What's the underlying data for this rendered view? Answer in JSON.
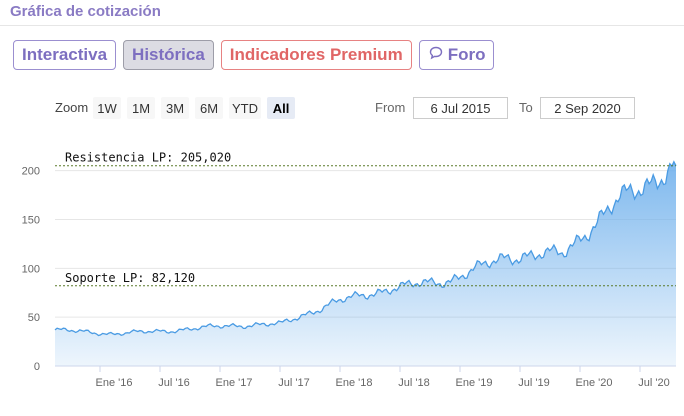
{
  "header": {
    "title": "Gráfica de cotización"
  },
  "tabs": [
    {
      "label": "Interactiva"
    },
    {
      "label": "Histórica"
    },
    {
      "label": "Indicadores Premium"
    },
    {
      "label": "Foro",
      "icon": "speech-bubble-icon"
    }
  ],
  "zoom": {
    "label": "Zoom",
    "buttons": [
      "1W",
      "1M",
      "3M",
      "6M",
      "YTD",
      "All"
    ],
    "active": "All"
  },
  "range": {
    "from_label": "From",
    "from_value": "6 Jul 2015",
    "to_label": "To",
    "to_value": "2 Sep 2020"
  },
  "chart_data": {
    "type": "area",
    "y_ticks": [
      0,
      50,
      100,
      150,
      200
    ],
    "ylim": [
      0,
      215
    ],
    "x_tick_labels": [
      "Ene '16",
      "Jul '16",
      "Ene '17",
      "Jul '17",
      "Ene '18",
      "Jul '18",
      "Ene '19",
      "Jul '19",
      "Ene '20",
      "Jul '20"
    ],
    "x": [
      "Jul '15",
      "Ene '16",
      "Jul '16",
      "Ene '17",
      "Jul '17",
      "Ene '18",
      "Jul '18",
      "Ene '19",
      "Jul '19",
      "Ene '20",
      "Jul '20",
      "Sep '20"
    ],
    "values": [
      37,
      33,
      36,
      41,
      43,
      66,
      80,
      88,
      112,
      115,
      170,
      205
    ],
    "annotations": [
      {
        "label": "Resistencia LP: 205,020",
        "value": 205.02
      },
      {
        "label": "Soporte LP: 82,120",
        "value": 82.12
      }
    ],
    "series_color": "#6fb0ec",
    "line_color": "#4a9be3",
    "annotation_color": "#5a7a2a"
  }
}
